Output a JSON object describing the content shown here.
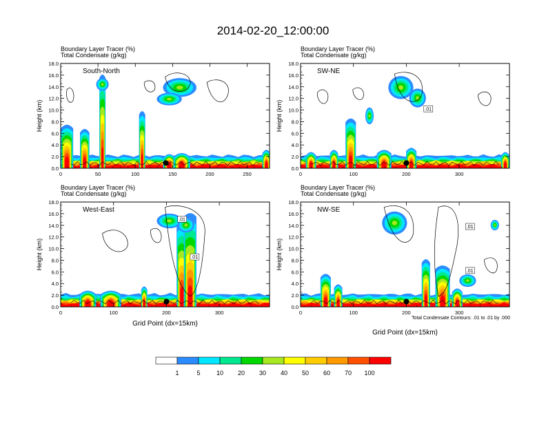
{
  "title": "2014-02-20_12:00:00",
  "chart_data": [
    {
      "type": "heatmap",
      "subtitle1": "Boundary Layer Tracer   (%)",
      "subtitle2": "Total Condensate   (g/kg)",
      "label": "South-North",
      "xlabel": "",
      "ylabel": "Height (km)",
      "xlim": [
        0,
        280
      ],
      "ylim": [
        0,
        18
      ],
      "xticks": [
        "0",
        "50",
        "100",
        "150",
        "200",
        "250"
      ],
      "yticks": [
        "0.0",
        "2.0",
        "4.0",
        "6.0",
        "8.0",
        "10.0",
        "12.0",
        "14.0",
        "16.0",
        "18.0"
      ],
      "marker_x": 141,
      "contour_labels": []
    },
    {
      "type": "heatmap",
      "subtitle1": "Boundary Layer Tracer   (%)",
      "subtitle2": "Total Condensate   (g/kg)",
      "label": "SW-NE",
      "xlabel": "",
      "ylabel": "Height (km)",
      "xlim": [
        0,
        395
      ],
      "ylim": [
        0,
        18
      ],
      "xticks": [
        "0",
        "100",
        "200",
        "300"
      ],
      "yticks": [
        "0.0",
        "2.0",
        "4.0",
        "6.0",
        "8.0",
        "10.0",
        "12.0",
        "14.0",
        "16.0",
        "18.0"
      ],
      "marker_x": 200,
      "contour_labels": [
        ".01"
      ]
    },
    {
      "type": "heatmap",
      "subtitle1": "Boundary Layer Tracer   (%)",
      "subtitle2": "Total Condensate   (g/kg)",
      "label": "West-East",
      "xlabel": "Grid Point (dx=15km)",
      "ylabel": "Height (km)",
      "xlim": [
        0,
        395
      ],
      "ylim": [
        0,
        18
      ],
      "xticks": [
        "0",
        "100",
        "200",
        "300"
      ],
      "yticks": [
        "0.0",
        "2.0",
        "4.0",
        "6.0",
        "8.0",
        "10.0",
        "12.0",
        "14.0",
        "16.0",
        "18.0"
      ],
      "marker_x": 200,
      "contour_labels": [
        ".01",
        ".01"
      ]
    },
    {
      "type": "heatmap",
      "subtitle1": "Boundary Layer Tracer   (%)",
      "subtitle2": "Total Condensate   (g/kg)",
      "label": "NW-SE",
      "xlabel": "Grid Point (dx=15km)",
      "ylabel": "Height (km)",
      "xlim": [
        0,
        395
      ],
      "ylim": [
        0,
        18
      ],
      "xticks": [
        "0",
        "100",
        "200",
        "300"
      ],
      "yticks": [
        "0.0",
        "2.0",
        "4.0",
        "6.0",
        "8.0",
        "10.0",
        "12.0",
        "14.0",
        "16.0",
        "18.0"
      ],
      "marker_x": 200,
      "contour_labels": [
        ".01",
        ".01"
      ]
    }
  ],
  "contour_note": "Total Condensate Contours: .01 to .01 by .000",
  "legend": {
    "levels": [
      "1",
      "5",
      "10",
      "20",
      "30",
      "40",
      "50",
      "60",
      "70",
      "100"
    ],
    "colors": [
      "#ffffff",
      "#2b8cff",
      "#00e8ff",
      "#00e890",
      "#00d800",
      "#a8e820",
      "#ffff00",
      "#ffcc00",
      "#ff9900",
      "#ff5000",
      "#ff0000"
    ]
  }
}
